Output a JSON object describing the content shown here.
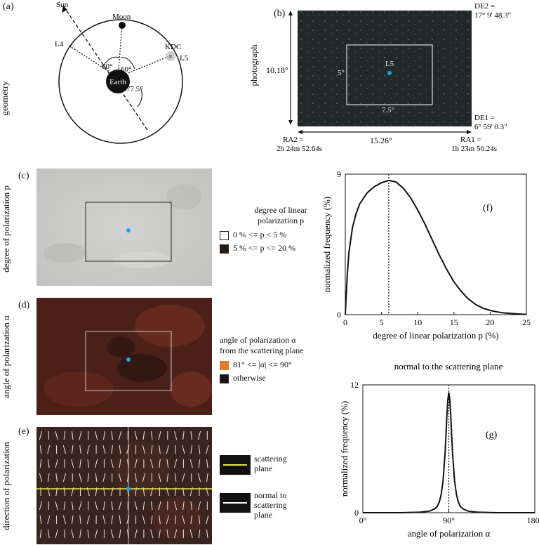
{
  "panels": {
    "a": {
      "label": "(a)",
      "side": "geometry",
      "labels": {
        "sun": "Sun",
        "moon": "Moon",
        "earth": "Earth",
        "l4": "L4",
        "l5": "L5",
        "kdc": "KDC",
        "ang1": "60°",
        "ang2": "60°",
        "ang3": "77.5°"
      }
    },
    "b": {
      "label": "(b)",
      "side": "photograph",
      "de2": "DE2 =",
      "de2_val": "17° 9' 48.3\"",
      "de1": "DE1 =",
      "de1_val": "6° 59' 0.3\"",
      "height": "10.18°",
      "width": "15.26°",
      "l5": "L5",
      "box_h": "5°",
      "box_w": "7.5°",
      "ra2": "RA2 =",
      "ra2_val": "2h 24m 52.64s",
      "ra1": "RA1 =",
      "ra1_val": "1h 23m 50.24s"
    },
    "c": {
      "label": "(c)",
      "side": "degree of polarization p",
      "legend_title1": "degree of linear",
      "legend_title2": "polarization p",
      "legend_items": [
        "0 % <= p < 5 %",
        "5 % <= p <= 20 %"
      ],
      "legend_colors": [
        "#ffffff",
        "#2a1a16"
      ]
    },
    "d": {
      "label": "(d)",
      "side": "angle of polarization α",
      "legend_title1": "angle of polarization α",
      "legend_title2": "from the scattering plane",
      "legend_items": [
        "81° <= |α| <= 90°",
        "otherwise"
      ],
      "legend_colors": [
        "#e07a2c",
        "#1c1412"
      ]
    },
    "e": {
      "label": "(e)",
      "side": "direction of polarization",
      "legend1": [
        "scattering",
        "plane"
      ],
      "legend2": [
        "normal to",
        "scattering",
        "plane"
      ],
      "colors": {
        "scattering": "#e6e64a",
        "normal": "#ffffff"
      }
    },
    "f": {
      "label": "(f)"
    },
    "g": {
      "label": "(g)",
      "title": "normal to the scattering plane"
    }
  },
  "chart_data": [
    {
      "type": "line",
      "id": "f",
      "xlabel": "degree of linear polarization p (%)",
      "ylabel": "normalized frequency (%)",
      "xlim": [
        0,
        25
      ],
      "ylim": [
        0,
        9
      ],
      "xticks": [
        0,
        5,
        10,
        15,
        20,
        25
      ],
      "yticks": [
        0,
        9
      ],
      "x": [
        0,
        0.25,
        0.5,
        1,
        1.5,
        2,
        3,
        4,
        5,
        6,
        7,
        8,
        9,
        10,
        11,
        12,
        13,
        14,
        15,
        16,
        17,
        18,
        19,
        20,
        21,
        22,
        23,
        24,
        25
      ],
      "y": [
        0,
        2.4,
        4.0,
        5.6,
        6.5,
        7.1,
        7.8,
        8.2,
        8.45,
        8.6,
        8.5,
        8.1,
        7.5,
        6.7,
        5.8,
        4.8,
        3.8,
        2.9,
        2.1,
        1.5,
        1.0,
        0.65,
        0.42,
        0.27,
        0.17,
        0.11,
        0.07,
        0.04,
        0.02
      ],
      "peak_x": 6,
      "grid": false
    },
    {
      "type": "line",
      "id": "g",
      "title": "normal to the scattering plane",
      "xlabel": "angle of polarization α",
      "ylabel": "normalized frequency (%)",
      "xlim": [
        0,
        180
      ],
      "ylim": [
        0,
        12
      ],
      "xticks": [
        "0°",
        "90°",
        "180°"
      ],
      "yticks": [
        0,
        12
      ],
      "x": [
        0,
        40,
        60,
        70,
        75,
        78,
        80,
        82,
        84,
        86,
        87,
        88,
        89,
        90,
        91,
        92,
        93,
        94,
        96,
        98,
        100,
        102,
        105,
        110,
        120,
        140,
        180
      ],
      "y": [
        0,
        0,
        0.05,
        0.15,
        0.35,
        0.6,
        1.0,
        1.7,
        3.0,
        5.5,
        7.2,
        9.2,
        10.6,
        11.3,
        10.6,
        9.2,
        7.2,
        5.5,
        3.0,
        1.7,
        1.0,
        0.6,
        0.35,
        0.15,
        0.05,
        0,
        0
      ],
      "peak_x": 90,
      "grid": false
    }
  ]
}
